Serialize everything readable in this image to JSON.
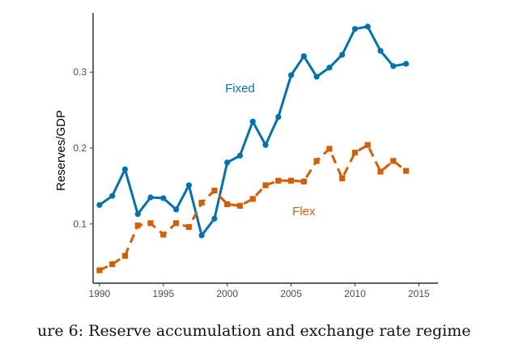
{
  "caption": "ure 6: Reserve accumulation and exchange rate regime",
  "chart_data": {
    "type": "line",
    "xlabel": "",
    "ylabel": "Reserves/GDP",
    "xlim": [
      1989.5,
      2016.5
    ],
    "ylim": [
      0.022,
      0.378
    ],
    "x_ticks": [
      1990,
      1995,
      2000,
      2005,
      2010,
      2015
    ],
    "y_ticks": [
      0.1,
      0.2,
      0.3
    ],
    "y_tick_labels": [
      "0.1",
      "0.2",
      "0.3"
    ],
    "grid": false,
    "legend": "none (direct labels)",
    "x": [
      1990,
      1991,
      1992,
      1993,
      1994,
      1995,
      1996,
      1997,
      1998,
      1999,
      2000,
      2001,
      2002,
      2003,
      2004,
      2005,
      2006,
      2007,
      2008,
      2009,
      2010,
      2011,
      2012,
      2013,
      2014
    ],
    "series": [
      {
        "name": "Fixed",
        "color": "#0072B2",
        "style": "solid",
        "marker": "circle",
        "label_x": 2001,
        "label_y": 0.279,
        "values": [
          0.125,
          0.137,
          0.172,
          0.113,
          0.135,
          0.134,
          0.119,
          0.151,
          0.085,
          0.107,
          0.181,
          0.19,
          0.235,
          0.204,
          0.241,
          0.296,
          0.321,
          0.294,
          0.306,
          0.323,
          0.357,
          0.36,
          0.328,
          0.308,
          0.311
        ]
      },
      {
        "name": "Flex",
        "color": "#D55E00",
        "style": "dashed",
        "marker": "square",
        "label_x": 2006,
        "label_y": 0.117,
        "values": [
          0.039,
          0.047,
          0.058,
          0.098,
          0.101,
          0.086,
          0.101,
          0.096,
          0.128,
          0.144,
          0.126,
          0.124,
          0.133,
          0.151,
          0.157,
          0.157,
          0.156,
          0.183,
          0.199,
          0.16,
          0.194,
          0.204,
          0.169,
          0.183,
          0.17
        ]
      }
    ]
  }
}
